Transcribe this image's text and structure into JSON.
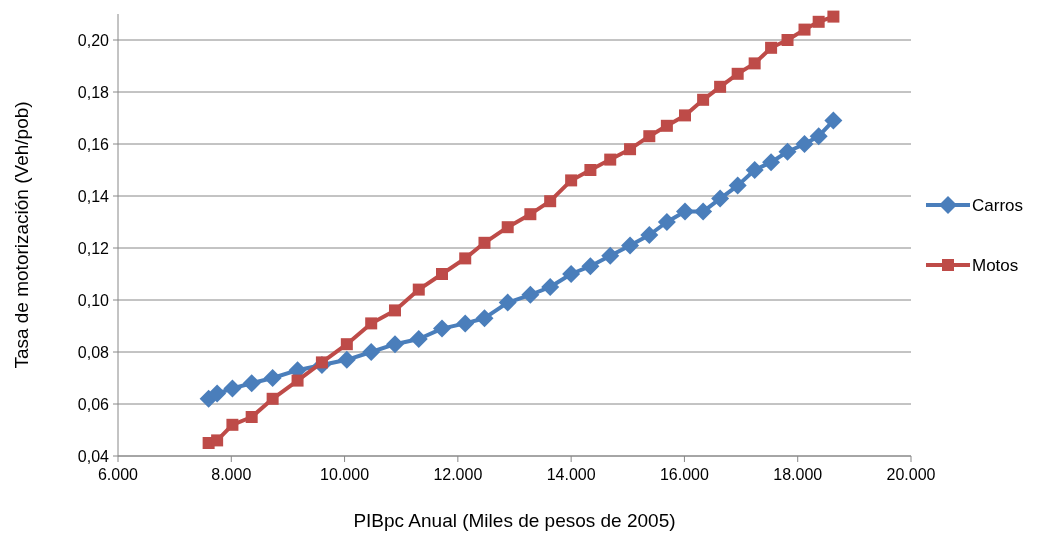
{
  "chart_data": {
    "type": "line",
    "xlabel": "PIBpc Anual (Miles de pesos de 2005)",
    "ylabel": "Tasa de motorización (Veh/pob)",
    "x": [
      7600,
      7750,
      8020,
      8360,
      8730,
      9170,
      9600,
      10040,
      10470,
      10890,
      11310,
      11720,
      12130,
      12470,
      12880,
      13280,
      13630,
      14000,
      14340,
      14690,
      15040,
      15380,
      15690,
      16010,
      16330,
      16630,
      16940,
      17240,
      17530,
      17820,
      18120,
      18370,
      18630
    ],
    "series": [
      {
        "name": "Carros",
        "color": "#4a7ebb",
        "marker": "diamond",
        "values": [
          0.062,
          0.064,
          0.066,
          0.068,
          0.07,
          0.073,
          0.075,
          0.077,
          0.08,
          0.083,
          0.085,
          0.089,
          0.091,
          0.093,
          0.099,
          0.102,
          0.105,
          0.11,
          0.113,
          0.117,
          0.121,
          0.125,
          0.13,
          0.134,
          0.134,
          0.139,
          0.144,
          0.15,
          0.153,
          0.157,
          0.16,
          0.163,
          0.169
        ]
      },
      {
        "name": "Motos",
        "color": "#be4b48",
        "marker": "square",
        "values": [
          0.045,
          0.046,
          0.052,
          0.055,
          0.062,
          0.069,
          0.076,
          0.083,
          0.091,
          0.096,
          0.104,
          0.11,
          0.116,
          0.122,
          0.128,
          0.133,
          0.138,
          0.146,
          0.15,
          0.154,
          0.158,
          0.163,
          0.167,
          0.171,
          0.177,
          0.182,
          0.187,
          0.191,
          0.197,
          0.2,
          0.204,
          0.207,
          0.209
        ]
      }
    ],
    "xlim": [
      6000,
      20000
    ],
    "xticks": [
      {
        "value": 6000,
        "label": "6.000"
      },
      {
        "value": 8000,
        "label": "8.000"
      },
      {
        "value": 10000,
        "label": "10.000"
      },
      {
        "value": 12000,
        "label": "12.000"
      },
      {
        "value": 14000,
        "label": "14.000"
      },
      {
        "value": 16000,
        "label": "16.000"
      },
      {
        "value": 18000,
        "label": "18.000"
      },
      {
        "value": 20000,
        "label": "20.000"
      }
    ],
    "ylim": [
      0.04,
      0.21
    ],
    "yticks": [
      {
        "value": 0.04,
        "label": "0,04"
      },
      {
        "value": 0.06,
        "label": "0,06"
      },
      {
        "value": 0.08,
        "label": "0,08"
      },
      {
        "value": 0.1,
        "label": "0,10"
      },
      {
        "value": 0.12,
        "label": "0,12"
      },
      {
        "value": 0.14,
        "label": "0,14"
      },
      {
        "value": 0.16,
        "label": "0,16"
      },
      {
        "value": 0.18,
        "label": "0,18"
      },
      {
        "value": 0.2,
        "label": "0,20"
      }
    ],
    "grid": "y",
    "legend": "right",
    "line_style": "solid"
  }
}
